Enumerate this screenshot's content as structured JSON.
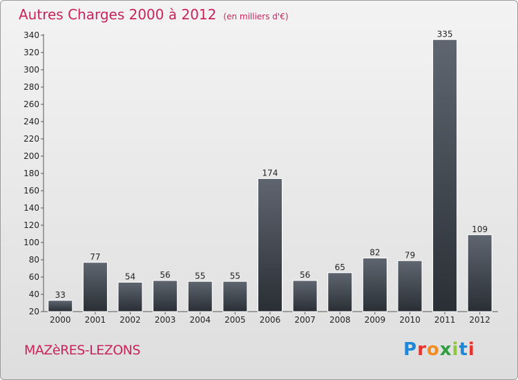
{
  "header": {
    "title": "Autres Charges 2000 à 2012",
    "unit": "(en milliers d'€)"
  },
  "footer": {
    "town": "MAZèRES-LEZONS",
    "logo_letters": [
      {
        "char": "P",
        "color": "#1e88d8"
      },
      {
        "char": "r",
        "color": "#e8322b"
      },
      {
        "char": "o",
        "color": "#f28c1e"
      },
      {
        "char": "x",
        "color": "#2e9e3e"
      },
      {
        "char": "i",
        "color": "#8dc63f"
      },
      {
        "char": "t",
        "color": "#1e88d8"
      },
      {
        "char": "i",
        "color": "#e8322b"
      }
    ]
  },
  "colors": {
    "accent": "#c8245a",
    "bar_top": "#5f6670",
    "bar_bottom": "#2a2f35"
  },
  "chart_data": {
    "type": "bar",
    "title": "Autres Charges 2000 à 2012",
    "subtitle": "(en milliers d'€)",
    "categories": [
      "2000",
      "2001",
      "2002",
      "2003",
      "2004",
      "2005",
      "2006",
      "2007",
      "2008",
      "2009",
      "2010",
      "2011",
      "2012"
    ],
    "values": [
      33,
      77,
      54,
      56,
      55,
      55,
      174,
      56,
      65,
      82,
      79,
      335,
      109
    ],
    "ylim": [
      20,
      340
    ],
    "yticks": [
      20,
      40,
      60,
      80,
      100,
      120,
      140,
      160,
      180,
      200,
      220,
      240,
      260,
      280,
      300,
      320,
      340
    ],
    "grid": false,
    "legend": "none"
  }
}
